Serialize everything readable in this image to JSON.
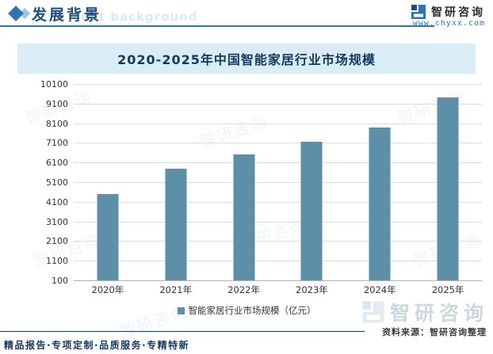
{
  "header": {
    "section_title": "发展背景",
    "section_title_ghost": "ent background",
    "brand_name": "智研咨询",
    "brand_url": "www.chyxx.com"
  },
  "chart_data": {
    "type": "bar",
    "title": "2020-2025年中国智能家居行业市场规模",
    "categories": [
      "2020年",
      "2021年",
      "2022年",
      "2023年",
      "2024年",
      "2025年"
    ],
    "series": [
      {
        "name": "智能家居行业市场规模（亿元）",
        "values": [
          4500,
          5800,
          6500,
          7160,
          7900,
          9400
        ]
      }
    ],
    "unit": "亿元",
    "ylim": [
      100,
      10100
    ],
    "ytick_step": 1000,
    "yticks": [
      100,
      1100,
      2100,
      3100,
      4100,
      5100,
      6100,
      7100,
      8100,
      9100,
      10100
    ],
    "grid": true,
    "legend_position": "bottom",
    "bar_color": "#5d8fa9"
  },
  "footer": {
    "source": "资料来源：智研咨询整理",
    "motto": "精品报告·专项定制·品质服务·专精特新",
    "watermark_brand": "智研咨询"
  },
  "colors": {
    "accent_blue": "#2e75b6",
    "navy": "#17375e",
    "title_band_bg": "#daecf6",
    "bar": "#5d8fa9",
    "gridline": "#dddddd"
  }
}
